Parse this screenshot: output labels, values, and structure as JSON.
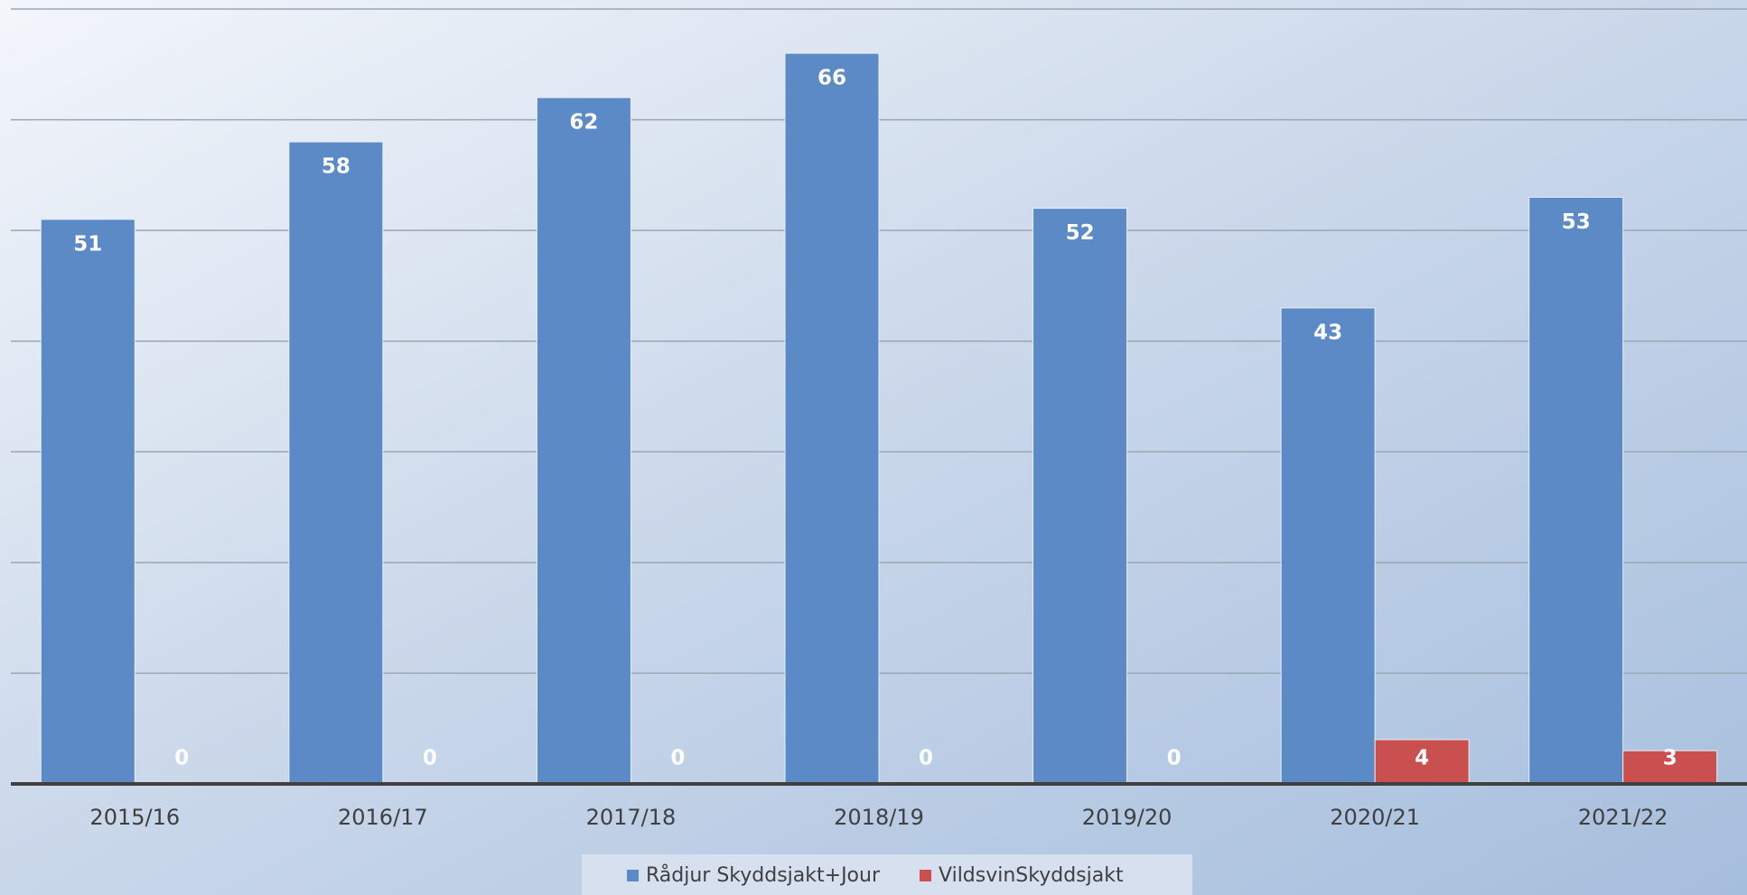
{
  "chart_data": {
    "type": "bar",
    "categories": [
      "2015/16",
      "2016/17",
      "2017/18",
      "2018/19",
      "2019/20",
      "2020/21",
      "2021/22"
    ],
    "series": [
      {
        "name": "Rådjur Skyddsjakt+Jour",
        "color": "#5b8ac6",
        "values": [
          51,
          58,
          62,
          66,
          52,
          43,
          53
        ]
      },
      {
        "name": "VildsvinSkyddsjakt",
        "color": "#c9504e",
        "values": [
          0,
          0,
          0,
          0,
          0,
          4,
          3
        ]
      }
    ],
    "ylim": [
      0,
      70
    ],
    "yticks": [
      0,
      10,
      20,
      30,
      40,
      50,
      60,
      70
    ],
    "grid": true,
    "legend": "bottom"
  }
}
